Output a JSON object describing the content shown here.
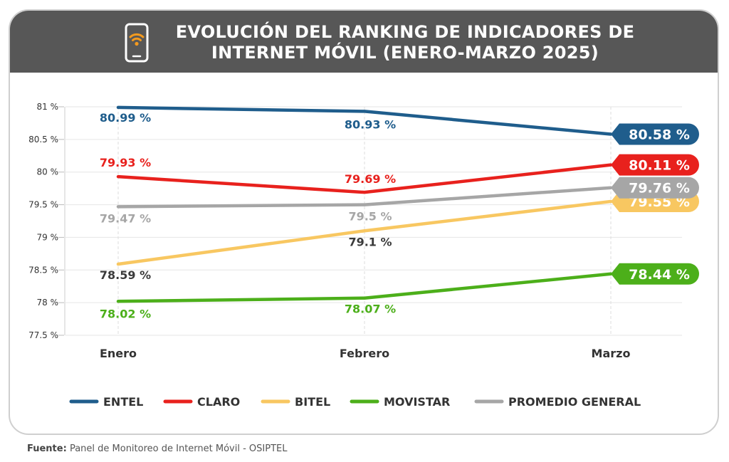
{
  "header": {
    "title_line1": "EVOLUCIÓN DEL RANKING DE INDICADORES DE",
    "title_line2": "INTERNET MÓVIL (ENERO-MARZO 2025)",
    "icon": "smartphone-wifi-icon"
  },
  "source": {
    "label": "Fuente:",
    "text": "Panel de Monitoreo de Internet Móvil - OSIPTEL"
  },
  "chart_data": {
    "type": "line",
    "title": "EVOLUCIÓN DEL RANKING DE INDICADORES DE INTERNET MÓVIL (ENERO-MARZO 2025)",
    "categories": [
      "Enero",
      "Febrero",
      "Marzo"
    ],
    "ylim": [
      77.5,
      81
    ],
    "yticks": [
      77.5,
      78,
      78.5,
      79,
      79.5,
      80,
      80.5,
      81
    ],
    "ytick_labels": [
      "77.5 %",
      "78 %",
      "78.5 %",
      "79 %",
      "79.5 %",
      "80 %",
      "80.5 %",
      "81 %"
    ],
    "grid": true,
    "legend_position": "bottom",
    "series": [
      {
        "name": "ENTEL",
        "color": "#1f5d8c",
        "values": [
          80.99,
          80.93,
          80.58
        ],
        "labels": [
          "80.99 %",
          "80.93 %",
          "80.58 %"
        ],
        "label_color": "#1f5d8c",
        "end_text_color": "#ffffff"
      },
      {
        "name": "CLARO",
        "color": "#e8211d",
        "values": [
          79.93,
          79.69,
          80.11
        ],
        "labels": [
          "79.93 %",
          "79.69 %",
          "80.11 %"
        ],
        "label_color": "#e8211d",
        "end_text_color": "#ffffff"
      },
      {
        "name": "BITEL",
        "color": "#f8c761",
        "values": [
          78.59,
          79.1,
          79.55
        ],
        "labels": [
          "78.59 %",
          "79.1 %",
          "79.55 %"
        ],
        "label_color": "#3a3a3a",
        "end_text_color": "#ffffff"
      },
      {
        "name": "MOVISTAR",
        "color": "#4caf1a",
        "values": [
          78.02,
          78.07,
          78.44
        ],
        "labels": [
          "78.02 %",
          "78.07 %",
          "78.44 %"
        ],
        "label_color": "#4caf1a",
        "end_text_color": "#ffffff"
      },
      {
        "name": "PROMEDIO GENERAL",
        "color": "#a6a6a6",
        "values": [
          79.47,
          79.5,
          79.76
        ],
        "labels": [
          "79.47 %",
          "79.5 %",
          "79.76 %"
        ],
        "label_color": "#a6a6a6",
        "end_text_color": "#ffffff"
      }
    ]
  }
}
